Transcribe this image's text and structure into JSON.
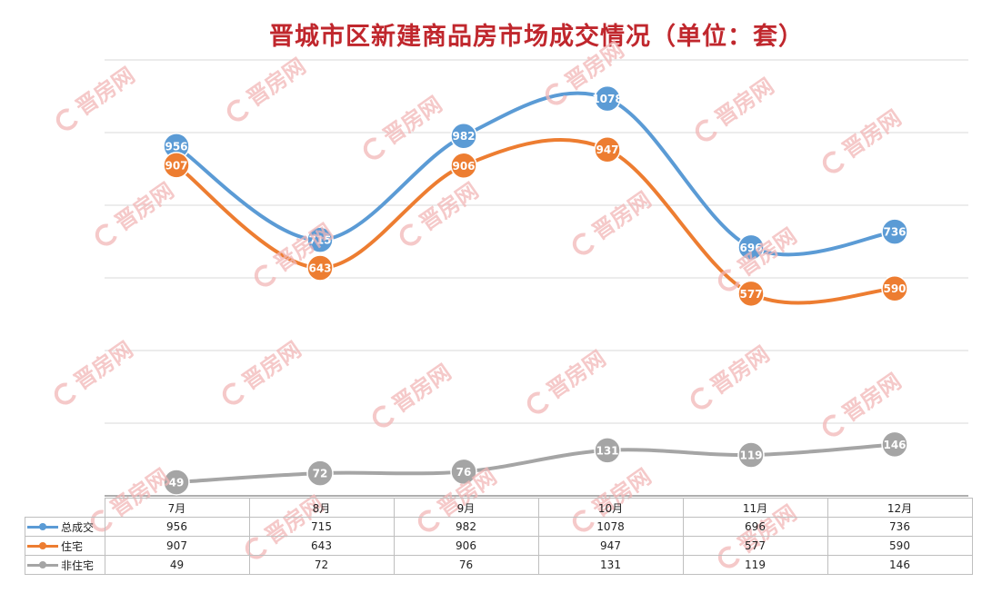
{
  "chart_data": {
    "type": "line",
    "title": "晋城市区新建商品房市场成交情况（单位：套）",
    "categories": [
      "7月",
      "8月",
      "9月",
      "10月",
      "11月",
      "12月"
    ],
    "series": [
      {
        "name": "总成交",
        "color": "#5b9bd5",
        "values": [
          956,
          715,
          982,
          1078,
          696,
          736
        ]
      },
      {
        "name": "住宅",
        "color": "#ed7d31",
        "values": [
          907,
          643,
          906,
          947,
          577,
          590
        ]
      },
      {
        "name": "非住宅",
        "color": "#a5a5a5",
        "values": [
          49,
          72,
          76,
          131,
          119,
          146
        ]
      }
    ],
    "grid": true,
    "legend": "table-below",
    "smooth": true
  },
  "watermark": {
    "text": "晋房网",
    "color": "#f2b8b8"
  }
}
